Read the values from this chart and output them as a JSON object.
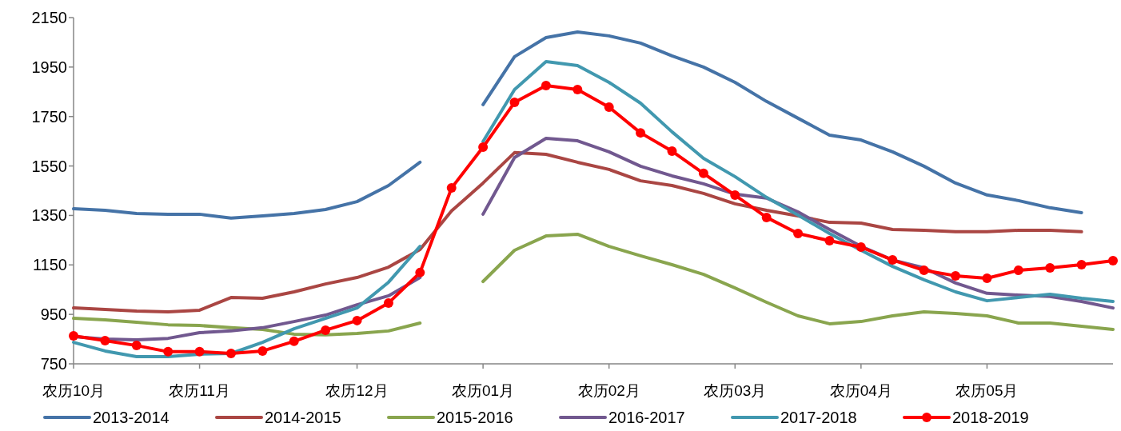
{
  "chart_data": {
    "type": "line",
    "categories": [
      "农历10月",
      null,
      null,
      null,
      "农历11月",
      null,
      null,
      null,
      null,
      "农历12月",
      null,
      null,
      null,
      "农历01月",
      null,
      null,
      null,
      "农历02月",
      null,
      null,
      null,
      "农历03月",
      null,
      null,
      null,
      "农历04月",
      null,
      null,
      null,
      "农历05月",
      null,
      null,
      null,
      null
    ],
    "ylim": [
      750,
      2150
    ],
    "yticks": [
      750,
      950,
      1150,
      1350,
      1550,
      1750,
      1950,
      2150
    ],
    "grid": false,
    "legend": "bottom",
    "line_style": "solid",
    "series": [
      {
        "name": "2013-2014",
        "color": "#4573a7",
        "marker": "none",
        "values": [
          1377,
          1371,
          1358,
          1355,
          1355,
          1339,
          1348,
          1358,
          1374,
          1406,
          1471,
          1565,
          null,
          1798,
          1992,
          2069,
          2092,
          2076,
          2047,
          1995,
          1950,
          1888,
          1811,
          1743,
          1675,
          1655,
          1607,
          1549,
          1481,
          1433,
          1410,
          1381,
          1361,
          null
        ]
      },
      {
        "name": "2014-2015",
        "color": "#aa4643",
        "marker": "none",
        "values": [
          976,
          970,
          963,
          960,
          967,
          1018,
          1015,
          1041,
          1073,
          1099,
          1141,
          1212,
          1368,
          1481,
          1604,
          1597,
          1565,
          1536,
          1490,
          1471,
          1439,
          1397,
          1371,
          1348,
          1322,
          1319,
          1293,
          1290,
          1284,
          1284,
          1290,
          1290,
          1284,
          null
        ]
      },
      {
        "name": "2015-2016",
        "color": "#89a54e",
        "marker": "none",
        "values": [
          934,
          928,
          918,
          908,
          905,
          896,
          889,
          870,
          867,
          873,
          883,
          915,
          null,
          1083,
          1209,
          1267,
          1274,
          1225,
          1187,
          1151,
          1112,
          1057,
          999,
          944,
          912,
          921,
          944,
          960,
          954,
          944,
          915,
          915,
          902,
          889
        ]
      },
      {
        "name": "2016-2017",
        "color": "#71588f",
        "marker": "none",
        "values": [
          860,
          850,
          847,
          853,
          876,
          883,
          896,
          921,
          947,
          989,
          1025,
          1099,
          null,
          1355,
          1584,
          1662,
          1652,
          1607,
          1549,
          1510,
          1478,
          1436,
          1420,
          1364,
          1293,
          1225,
          1170,
          1138,
          1077,
          1035,
          1028,
          1022,
          1002,
          976
        ]
      },
      {
        "name": "2017-2018",
        "color": "#4198af",
        "marker": "none",
        "values": [
          837,
          802,
          779,
          779,
          789,
          792,
          837,
          892,
          934,
          976,
          1080,
          1225,
          null,
          1649,
          1859,
          1972,
          1956,
          1888,
          1804,
          1688,
          1581,
          1507,
          1423,
          1351,
          1277,
          1209,
          1144,
          1090,
          1041,
          1005,
          1018,
          1031,
          1015,
          1002
        ]
      },
      {
        "name": "2018-2019",
        "color": "#ff0000",
        "marker": "circle",
        "values": [
          863,
          844,
          824,
          799,
          799,
          792,
          802,
          841,
          886,
          925,
          996,
          1119,
          1461,
          1626,
          1807,
          1875,
          1859,
          1788,
          1684,
          1610,
          1520,
          1432,
          1342,
          1277,
          1248,
          1222,
          1170,
          1128,
          1106,
          1096,
          1128,
          1138,
          1151,
          1167
        ]
      }
    ]
  }
}
